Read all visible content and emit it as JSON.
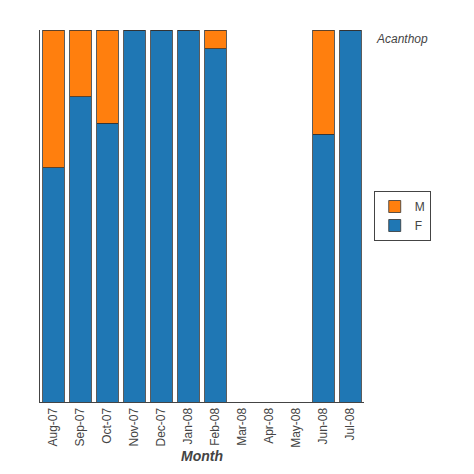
{
  "chart_data": {
    "type": "bar",
    "stacked": true,
    "categories": [
      "Aug-07",
      "Sep-07",
      "Oct-07",
      "Nov-07",
      "Dec-07",
      "Jan-08",
      "Feb-08",
      "Mar-08",
      "Apr-08",
      "May-08",
      "Jun-08",
      "Jul-08"
    ],
    "series": [
      {
        "name": "F",
        "values": [
          0.63,
          0.82,
          0.75,
          1.0,
          1.0,
          1.0,
          0.95,
          0.0,
          0.0,
          0.0,
          0.72,
          1.0
        ]
      },
      {
        "name": "M",
        "values": [
          0.37,
          0.18,
          0.25,
          0.0,
          0.0,
          0.0,
          0.05,
          0.0,
          0.0,
          0.0,
          0.28,
          0.0
        ]
      }
    ],
    "xlabel": "Month",
    "ylim": [
      0,
      1
    ],
    "yticks": [],
    "tick_labels": "x",
    "grid": false,
    "legend": "right",
    "annotations": [
      "Acanthop"
    ]
  }
}
